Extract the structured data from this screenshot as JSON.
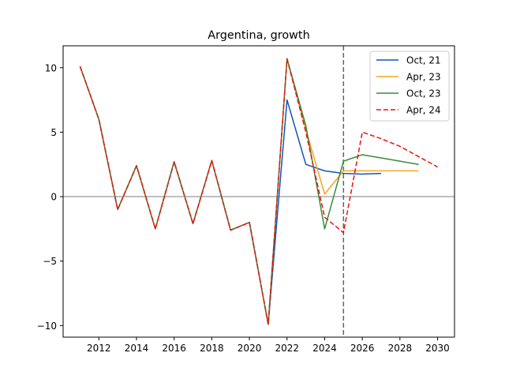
{
  "chart_data": {
    "type": "line",
    "title": "Argentina, growth",
    "xlabel": "",
    "ylabel": "",
    "xlim": [
      2010.1,
      2030.9
    ],
    "ylim": [
      -10.9,
      11.7
    ],
    "xticks": [
      2012,
      2014,
      2016,
      2018,
      2020,
      2022,
      2024,
      2026,
      2028,
      2030
    ],
    "yticks": [
      -10,
      -5,
      0,
      5,
      10
    ],
    "grid": false,
    "legend_position": "top-right",
    "reference_lines": {
      "horizontal_y": 0,
      "horizontal_color": "#aaaaaa",
      "vertical_x": 2025,
      "vertical_color": "#666666",
      "vertical_style": "dashed"
    },
    "series": [
      {
        "name": "Oct, 21",
        "color": "#1155bb",
        "style": "solid",
        "x": [
          2011,
          2012,
          2013,
          2014,
          2015,
          2016,
          2017,
          2018,
          2019,
          2020,
          2021,
          2022,
          2023,
          2024,
          2025,
          2026,
          2027
        ],
        "values": [
          10.1,
          6.0,
          -1.0,
          2.4,
          -2.5,
          2.7,
          -2.1,
          2.8,
          -2.6,
          -2.0,
          -9.9,
          7.5,
          2.5,
          2.0,
          1.8,
          1.75,
          1.8
        ]
      },
      {
        "name": "Apr, 23",
        "color": "#f5a623",
        "style": "solid",
        "x": [
          2011,
          2012,
          2013,
          2014,
          2015,
          2016,
          2017,
          2018,
          2019,
          2020,
          2021,
          2022,
          2023,
          2024,
          2025,
          2026,
          2027,
          2028,
          2029
        ],
        "values": [
          10.1,
          6.0,
          -1.0,
          2.4,
          -2.5,
          2.7,
          -2.1,
          2.8,
          -2.6,
          -2.0,
          -9.9,
          10.7,
          5.2,
          0.2,
          2.0,
          2.0,
          2.0,
          2.0,
          2.0
        ]
      },
      {
        "name": "Oct, 23",
        "color": "#3a8a3a",
        "style": "solid",
        "x": [
          2011,
          2012,
          2013,
          2014,
          2015,
          2016,
          2017,
          2018,
          2019,
          2020,
          2021,
          2022,
          2023,
          2024,
          2025,
          2026,
          2027,
          2028,
          2029
        ],
        "values": [
          10.1,
          6.0,
          -1.0,
          2.4,
          -2.5,
          2.7,
          -2.1,
          2.8,
          -2.6,
          -2.0,
          -9.9,
          10.7,
          5.5,
          -2.5,
          2.75,
          3.25,
          3.0,
          2.75,
          2.5
        ]
      },
      {
        "name": "Apr, 24",
        "color": "#ee1111",
        "style": "dashed",
        "x": [
          2011,
          2012,
          2013,
          2014,
          2015,
          2016,
          2017,
          2018,
          2019,
          2020,
          2021,
          2022,
          2023,
          2024,
          2025,
          2026,
          2027,
          2028,
          2029,
          2030
        ],
        "values": [
          10.1,
          6.0,
          -1.0,
          2.4,
          -2.5,
          2.7,
          -2.1,
          2.8,
          -2.6,
          -2.0,
          -9.9,
          10.7,
          5.0,
          -1.6,
          -2.8,
          5.0,
          4.5,
          3.9,
          3.1,
          2.3
        ]
      }
    ]
  }
}
